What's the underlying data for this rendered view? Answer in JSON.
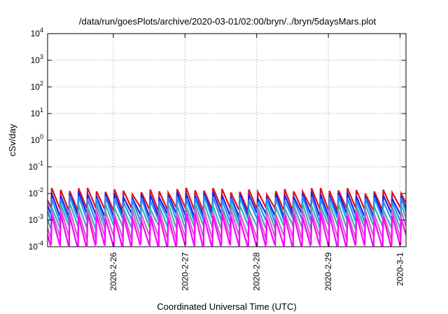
{
  "chart_data": {
    "type": "line",
    "title": "/data/run/goesPlots/archive/2020-03-01/02:00/bryn/../bryn/5daysMars.plot",
    "xlabel": "Coordinated Universal Time (UTC)",
    "ylabel": "cSv/day",
    "y_scale": "log",
    "ylim": [
      0.0001,
      10000
    ],
    "y_ticks": [
      {
        "base": "10",
        "exp": "4"
      },
      {
        "base": "10",
        "exp": "3"
      },
      {
        "base": "10",
        "exp": "2"
      },
      {
        "base": "10",
        "exp": "1"
      },
      {
        "base": "10",
        "exp": "0"
      },
      {
        "base": "10",
        "exp": "-1"
      },
      {
        "base": "10",
        "exp": "-2"
      },
      {
        "base": "10",
        "exp": "-3"
      },
      {
        "base": "10",
        "exp": "-4"
      }
    ],
    "xlim": [
      "2020-02-25T02:00",
      "2020-03-01T02:00"
    ],
    "x_ticks": [
      "2020-2-26",
      "2020-2-27",
      "2020-2-28",
      "2020-2-29",
      "2020-3-1"
    ],
    "grid": true,
    "cycle_hours": 3,
    "series": [
      {
        "color": "#e0101a",
        "peak": 0.013,
        "trough": 0.0028
      },
      {
        "color": "#2020e8",
        "peak": 0.009,
        "trough": 0.0017
      },
      {
        "color": "#1e90ff",
        "peak": 0.0065,
        "trough": 0.0011
      },
      {
        "color": "#3fb0b0",
        "peak": 0.0035,
        "trough": 0.0006
      },
      {
        "color": "#d060d0",
        "peak": 0.0022,
        "trough": 0.00025
      },
      {
        "color": "#ff00ff",
        "peak": 0.0014,
        "trough": 0.00011
      }
    ]
  }
}
